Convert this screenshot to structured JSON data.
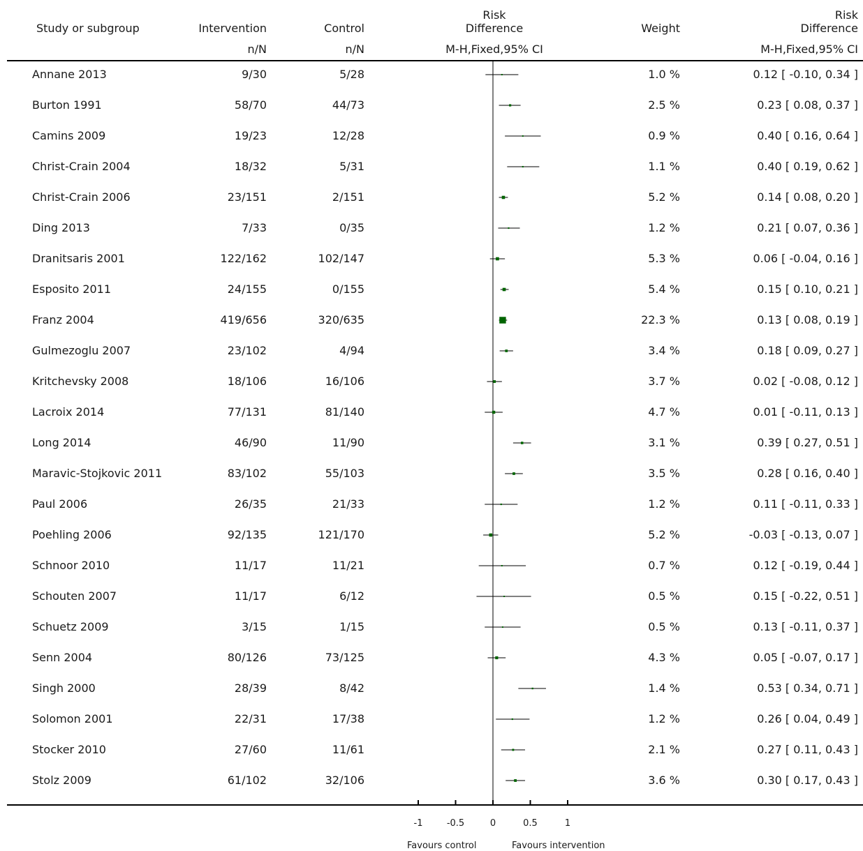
{
  "header": {
    "study_label": "Study or subgroup",
    "intervention_label": "Intervention",
    "control_label": "Control",
    "intervention_sub": "n/N",
    "control_sub": "n/N",
    "effect_label_line1": "Risk",
    "effect_label_line2": "Difference",
    "effect_method": "M-H,Fixed,95% CI",
    "weight_label": "Weight",
    "rd_label_line1": "Risk",
    "rd_label_line2": "Difference",
    "rd_method": "M-H,Fixed,95% CI"
  },
  "rows": [
    {
      "study": "Annane 2013",
      "intervention": "9/30",
      "control": "5/28",
      "weight": "1.0 %",
      "ci_text": "0.12 [ -0.10, 0.34 ]"
    },
    {
      "study": "Burton 1991",
      "intervention": "58/70",
      "control": "44/73",
      "weight": "2.5 %",
      "ci_text": "0.23 [ 0.08, 0.37 ]"
    },
    {
      "study": "Camins 2009",
      "intervention": "19/23",
      "control": "12/28",
      "weight": "0.9 %",
      "ci_text": "0.40 [ 0.16, 0.64 ]"
    },
    {
      "study": "Christ-Crain 2004",
      "intervention": "18/32",
      "control": "5/31",
      "weight": "1.1 %",
      "ci_text": "0.40 [ 0.19, 0.62 ]"
    },
    {
      "study": "Christ-Crain 2006",
      "intervention": "23/151",
      "control": "2/151",
      "weight": "5.2 %",
      "ci_text": "0.14 [ 0.08, 0.20 ]"
    },
    {
      "study": "Ding 2013",
      "intervention": "7/33",
      "control": "0/35",
      "weight": "1.2 %",
      "ci_text": "0.21 [ 0.07, 0.36 ]"
    },
    {
      "study": "Dranitsaris 2001",
      "intervention": "122/162",
      "control": "102/147",
      "weight": "5.3 %",
      "ci_text": "0.06 [ -0.04, 0.16 ]"
    },
    {
      "study": "Esposito 2011",
      "intervention": "24/155",
      "control": "0/155",
      "weight": "5.4 %",
      "ci_text": "0.15 [ 0.10, 0.21 ]"
    },
    {
      "study": "Franz 2004",
      "intervention": "419/656",
      "control": "320/635",
      "weight": "22.3 %",
      "ci_text": "0.13 [ 0.08, 0.19 ]"
    },
    {
      "study": "Gulmezoglu 2007",
      "intervention": "23/102",
      "control": "4/94",
      "weight": "3.4 %",
      "ci_text": "0.18 [ 0.09, 0.27 ]"
    },
    {
      "study": "Kritchevsky 2008",
      "intervention": "18/106",
      "control": "16/106",
      "weight": "3.7 %",
      "ci_text": "0.02 [ -0.08, 0.12 ]"
    },
    {
      "study": "Lacroix 2014",
      "intervention": "77/131",
      "control": "81/140",
      "weight": "4.7 %",
      "ci_text": "0.01 [ -0.11, 0.13 ]"
    },
    {
      "study": "Long 2014",
      "intervention": "46/90",
      "control": "11/90",
      "weight": "3.1 %",
      "ci_text": "0.39 [ 0.27, 0.51 ]"
    },
    {
      "study": "Maravic-Stojkovic 2011",
      "intervention": "83/102",
      "control": "55/103",
      "weight": "3.5 %",
      "ci_text": "0.28 [ 0.16, 0.40 ]"
    },
    {
      "study": "Paul 2006",
      "intervention": "26/35",
      "control": "21/33",
      "weight": "1.2 %",
      "ci_text": "0.11 [ -0.11, 0.33 ]"
    },
    {
      "study": "Poehling 2006",
      "intervention": "92/135",
      "control": "121/170",
      "weight": "5.2 %",
      "ci_text": "-0.03 [ -0.13, 0.07 ]"
    },
    {
      "study": "Schnoor 2010",
      "intervention": "11/17",
      "control": "11/21",
      "weight": "0.7 %",
      "ci_text": "0.12 [ -0.19, 0.44 ]"
    },
    {
      "study": "Schouten 2007",
      "intervention": "11/17",
      "control": "6/12",
      "weight": "0.5 %",
      "ci_text": "0.15 [ -0.22, 0.51 ]"
    },
    {
      "study": "Schuetz 2009",
      "intervention": "3/15",
      "control": "1/15",
      "weight": "0.5 %",
      "ci_text": "0.13 [ -0.11, 0.37 ]"
    },
    {
      "study": "Senn 2004",
      "intervention": "80/126",
      "control": "73/125",
      "weight": "4.3 %",
      "ci_text": "0.05 [ -0.07, 0.17 ]"
    },
    {
      "study": "Singh 2000",
      "intervention": "28/39",
      "control": "8/42",
      "weight": "1.4 %",
      "ci_text": "0.53 [ 0.34, 0.71 ]"
    },
    {
      "study": "Solomon 2001",
      "intervention": "22/31",
      "control": "17/38",
      "weight": "1.2 %",
      "ci_text": "0.26 [ 0.04, 0.49 ]"
    },
    {
      "study": "Stocker 2010",
      "intervention": "27/60",
      "control": "11/61",
      "weight": "2.1 %",
      "ci_text": "0.27 [ 0.11, 0.43 ]"
    },
    {
      "study": "Stolz 2009",
      "intervention": "61/102",
      "control": "32/106",
      "weight": "3.6 %",
      "ci_text": "0.30 [ 0.17, 0.43 ]"
    }
  ],
  "chart_data": {
    "type": "forest",
    "xlim": [
      -1,
      1
    ],
    "ticks": [
      -1,
      -0.5,
      0,
      0.5,
      1
    ],
    "tick_labels": [
      "-1",
      "-0.5",
      "0",
      "0.5",
      "1"
    ],
    "left_label": "Favours control",
    "right_label": "Favours intervention",
    "marker_color": "#006400",
    "estimates": [
      {
        "rd": 0.12,
        "lo": -0.1,
        "hi": 0.34,
        "weight": 1.0
      },
      {
        "rd": 0.23,
        "lo": 0.08,
        "hi": 0.37,
        "weight": 2.5
      },
      {
        "rd": 0.4,
        "lo": 0.16,
        "hi": 0.64,
        "weight": 0.9
      },
      {
        "rd": 0.4,
        "lo": 0.19,
        "hi": 0.62,
        "weight": 1.1
      },
      {
        "rd": 0.14,
        "lo": 0.08,
        "hi": 0.2,
        "weight": 5.2
      },
      {
        "rd": 0.21,
        "lo": 0.07,
        "hi": 0.36,
        "weight": 1.2
      },
      {
        "rd": 0.06,
        "lo": -0.04,
        "hi": 0.16,
        "weight": 5.3
      },
      {
        "rd": 0.15,
        "lo": 0.1,
        "hi": 0.21,
        "weight": 5.4
      },
      {
        "rd": 0.13,
        "lo": 0.08,
        "hi": 0.19,
        "weight": 22.3
      },
      {
        "rd": 0.18,
        "lo": 0.09,
        "hi": 0.27,
        "weight": 3.4
      },
      {
        "rd": 0.02,
        "lo": -0.08,
        "hi": 0.12,
        "weight": 3.7
      },
      {
        "rd": 0.01,
        "lo": -0.11,
        "hi": 0.13,
        "weight": 4.7
      },
      {
        "rd": 0.39,
        "lo": 0.27,
        "hi": 0.51,
        "weight": 3.1
      },
      {
        "rd": 0.28,
        "lo": 0.16,
        "hi": 0.4,
        "weight": 3.5
      },
      {
        "rd": 0.11,
        "lo": -0.11,
        "hi": 0.33,
        "weight": 1.2
      },
      {
        "rd": -0.03,
        "lo": -0.13,
        "hi": 0.07,
        "weight": 5.2
      },
      {
        "rd": 0.12,
        "lo": -0.19,
        "hi": 0.44,
        "weight": 0.7
      },
      {
        "rd": 0.15,
        "lo": -0.22,
        "hi": 0.51,
        "weight": 0.5
      },
      {
        "rd": 0.13,
        "lo": -0.11,
        "hi": 0.37,
        "weight": 0.5
      },
      {
        "rd": 0.05,
        "lo": -0.07,
        "hi": 0.17,
        "weight": 4.3
      },
      {
        "rd": 0.53,
        "lo": 0.34,
        "hi": 0.71,
        "weight": 1.4
      },
      {
        "rd": 0.26,
        "lo": 0.04,
        "hi": 0.49,
        "weight": 1.2
      },
      {
        "rd": 0.27,
        "lo": 0.11,
        "hi": 0.43,
        "weight": 2.1
      },
      {
        "rd": 0.3,
        "lo": 0.17,
        "hi": 0.43,
        "weight": 3.6
      }
    ]
  }
}
